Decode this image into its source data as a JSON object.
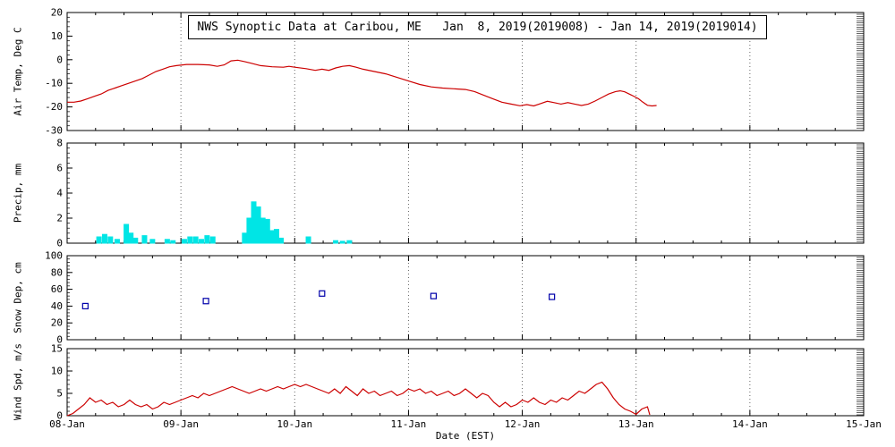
{
  "title": "NWS Synoptic Data at Caribou, ME   Jan  8, 2019(2019008) - Jan 14, 2019(2019014)",
  "colors": {
    "temp_line": "#cc0000",
    "precip_bar": "#00e5e5",
    "snow_marker": "#0000aa",
    "wind_line": "#cc0000",
    "frame": "#000000",
    "grid": "#666666"
  },
  "x_axis": {
    "label": "Date (EST)",
    "ticks": [
      "08-Jan",
      "09-Jan",
      "10-Jan",
      "11-Jan",
      "12-Jan",
      "13-Jan",
      "14-Jan",
      "15-Jan"
    ],
    "range_days": [
      0,
      7
    ]
  },
  "chart_data": [
    {
      "type": "line",
      "name": "air-temp",
      "ylabel": "Air Temp, Deg C",
      "ylim": [
        -30,
        20
      ],
      "yticks": [
        -30,
        -20,
        -10,
        0,
        10,
        20
      ],
      "color": "#cc0000",
      "x": [
        0.0,
        0.06,
        0.12,
        0.18,
        0.24,
        0.3,
        0.36,
        0.42,
        0.48,
        0.54,
        0.6,
        0.66,
        0.72,
        0.78,
        0.84,
        0.9,
        0.96,
        1.05,
        1.15,
        1.25,
        1.32,
        1.38,
        1.44,
        1.5,
        1.56,
        1.62,
        1.7,
        1.8,
        1.9,
        1.95,
        2.0,
        2.1,
        2.18,
        2.24,
        2.3,
        2.36,
        2.42,
        2.48,
        2.54,
        2.6,
        2.7,
        2.8,
        2.9,
        3.0,
        3.1,
        3.2,
        3.3,
        3.4,
        3.5,
        3.58,
        3.66,
        3.74,
        3.82,
        3.9,
        3.98,
        4.04,
        4.1,
        4.16,
        4.22,
        4.28,
        4.34,
        4.4,
        4.46,
        4.52,
        4.58,
        4.64,
        4.7,
        4.76,
        4.82,
        4.86,
        4.9,
        4.96,
        5.02,
        5.06,
        5.1,
        5.14,
        5.18
      ],
      "y": [
        -18,
        -18,
        -17.5,
        -16.5,
        -15.5,
        -14.5,
        -13,
        -12,
        -11,
        -10,
        -9,
        -8,
        -6.5,
        -5,
        -4,
        -3,
        -2.5,
        -2,
        -2,
        -2.2,
        -2.8,
        -2.2,
        -0.5,
        -0.2,
        -0.8,
        -1.5,
        -2.5,
        -3,
        -3.2,
        -2.8,
        -3.2,
        -3.8,
        -4.5,
        -4,
        -4.5,
        -3.5,
        -2.8,
        -2.5,
        -3.2,
        -4,
        -5,
        -6,
        -7.5,
        -9,
        -10.5,
        -11.5,
        -12,
        -12.3,
        -12.6,
        -13.5,
        -15,
        -16.5,
        -18,
        -18.8,
        -19.5,
        -19,
        -19.6,
        -18.6,
        -17.6,
        -18.2,
        -18.8,
        -18.2,
        -18.8,
        -19.4,
        -18.8,
        -17.5,
        -16,
        -14.5,
        -13.5,
        -13.2,
        -13.6,
        -15,
        -16.5,
        -18,
        -19.3,
        -19.6,
        -19.4
      ]
    },
    {
      "type": "bar",
      "name": "precip",
      "ylabel": "Precip, mm",
      "ylim": [
        0,
        8
      ],
      "yticks": [
        0,
        2,
        4,
        6,
        8
      ],
      "color": "#00e5e5",
      "x": [
        0.28,
        0.33,
        0.38,
        0.44,
        0.52,
        0.56,
        0.6,
        0.68,
        0.75,
        0.88,
        0.93,
        1.03,
        1.08,
        1.13,
        1.18,
        1.23,
        1.28,
        1.56,
        1.6,
        1.64,
        1.68,
        1.72,
        1.76,
        1.8,
        1.84,
        1.88,
        2.12,
        2.36,
        2.42,
        2.48
      ],
      "y": [
        0.5,
        0.7,
        0.5,
        0.3,
        1.5,
        0.8,
        0.4,
        0.6,
        0.3,
        0.3,
        0.2,
        0.3,
        0.5,
        0.5,
        0.3,
        0.6,
        0.5,
        0.8,
        2.0,
        3.3,
        2.9,
        2.0,
        1.9,
        1.0,
        1.1,
        0.4,
        0.5,
        0.2,
        0.15,
        0.2
      ]
    },
    {
      "type": "scatter",
      "name": "snow-depth",
      "ylabel": "Snow Dep, cm",
      "ylim": [
        0,
        100
      ],
      "yticks": [
        0,
        20,
        40,
        60,
        80,
        100
      ],
      "color": "#0000aa",
      "x": [
        0.16,
        1.22,
        2.24,
        3.22,
        4.26
      ],
      "y": [
        40,
        46,
        55,
        52,
        51
      ]
    },
    {
      "type": "line",
      "name": "wind-speed",
      "ylabel": "Wind Spd, m/s",
      "ylim": [
        0,
        15
      ],
      "yticks": [
        0,
        5,
        10,
        15
      ],
      "color": "#cc0000",
      "x": [
        0.0,
        0.05,
        0.1,
        0.15,
        0.2,
        0.25,
        0.3,
        0.35,
        0.4,
        0.45,
        0.5,
        0.55,
        0.6,
        0.65,
        0.7,
        0.75,
        0.8,
        0.85,
        0.9,
        0.95,
        1.0,
        1.05,
        1.1,
        1.15,
        1.2,
        1.25,
        1.3,
        1.35,
        1.4,
        1.45,
        1.5,
        1.55,
        1.6,
        1.65,
        1.7,
        1.75,
        1.8,
        1.85,
        1.9,
        1.95,
        2.0,
        2.05,
        2.1,
        2.15,
        2.2,
        2.25,
        2.3,
        2.35,
        2.4,
        2.45,
        2.5,
        2.55,
        2.6,
        2.65,
        2.7,
        2.75,
        2.8,
        2.85,
        2.9,
        2.95,
        3.0,
        3.05,
        3.1,
        3.15,
        3.2,
        3.25,
        3.3,
        3.35,
        3.4,
        3.45,
        3.5,
        3.55,
        3.6,
        3.65,
        3.7,
        3.75,
        3.8,
        3.85,
        3.9,
        3.95,
        4.0,
        4.05,
        4.1,
        4.15,
        4.2,
        4.25,
        4.3,
        4.35,
        4.4,
        4.45,
        4.5,
        4.55,
        4.6,
        4.65,
        4.7,
        4.75,
        4.8,
        4.85,
        4.9,
        4.95,
        5.0,
        5.05,
        5.1,
        5.12
      ],
      "y": [
        0,
        0.5,
        1.5,
        2.5,
        4,
        3,
        3.5,
        2.5,
        3,
        2,
        2.5,
        3.5,
        2.5,
        2,
        2.5,
        1.5,
        2,
        3,
        2.5,
        3,
        3.5,
        4,
        4.5,
        4,
        5,
        4.5,
        5,
        5.5,
        6,
        6.5,
        6,
        5.5,
        5,
        5.5,
        6,
        5.5,
        6,
        6.5,
        6,
        6.5,
        7,
        6.5,
        7,
        6.5,
        6,
        5.5,
        5,
        6,
        5,
        6.5,
        5.5,
        4.5,
        6,
        5,
        5.5,
        4.5,
        5,
        5.5,
        4.5,
        5,
        6,
        5.5,
        6,
        5,
        5.5,
        4.5,
        5,
        5.5,
        4.5,
        5,
        6,
        5,
        4,
        5,
        4.5,
        3,
        2,
        3,
        2,
        2.5,
        3.5,
        3,
        4,
        3,
        2.5,
        3.5,
        3,
        4,
        3.5,
        4.5,
        5.5,
        5,
        6,
        7,
        7.5,
        6,
        4,
        2.5,
        1.5,
        1,
        0.3,
        1.5,
        2,
        0.2
      ]
    }
  ]
}
